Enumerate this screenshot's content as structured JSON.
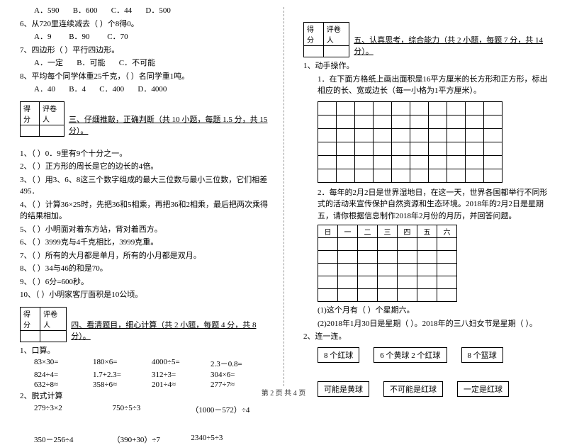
{
  "left": {
    "q5_opts": {
      "a": "A．590",
      "b": "B．600",
      "c": "C．44",
      "d": "D．500"
    },
    "q6": "6、从720里连续减去（    ）个8得0。",
    "q6_opts": {
      "a": "A．9",
      "b": "B．90",
      "c": "C．70"
    },
    "q7": "7、四边形（    ）平行四边形。",
    "q7_opts": {
      "a": "A．一定",
      "b": "B．可能",
      "c": "C．不可能"
    },
    "q8": "8、平均每个同学体重25千克，（    ）名同学重1吨。",
    "q8_opts": {
      "a": "A．40",
      "b": "B．4",
      "c": "C．400",
      "d": "D．4000"
    },
    "score_label_1": "得分",
    "score_label_2": "评卷人",
    "sec3_title": "三、仔细推敲，正确判断（共 10 小题，每题 1.5 分，共 15 分）。",
    "j1": "1、（    ）0．9里有9个十分之一。",
    "j2": "2、（    ）正方形的周长是它的边长的4倍。",
    "j3": "3、（    ）用3、6、8这三个数字组成的最大三位数与最小三位数，它们相差495．",
    "j4": "4、（    ）计算36×25时，先把36和5相乘，再把36和2相乘，最后把两次乘得的结果相加。",
    "j5": "5、（    ）小明面对着东方站，背对着西方。",
    "j6": "6、（    ）3999克与4千克相比，3999克重。",
    "j7": "7、（    ）所有的大月都是单月，所有的小月都是双月。",
    "j8": "8、（    ）34与46的和是70。",
    "j9": "9、（    ）6分=600秒。",
    "j10": "10、（    ）小明家客厅面积是10公顷。",
    "sec4_title": "四、看清题目，细心计算（共 2 小题，每题 4 分，共 8 分）。",
    "c1_label": "1、口算。",
    "c1r1": {
      "a": "83×30=",
      "b": "180×6=",
      "c": "4000÷5=",
      "d": "2.3－0.8="
    },
    "c1r2": {
      "a": "824÷4=",
      "b": "1.7+2.3=",
      "c": "312÷3=",
      "d": "304×6="
    },
    "c1r3": {
      "a": "632÷8≈",
      "b": "358÷6≈",
      "c": "201÷4≈",
      "d": "277÷7≈"
    },
    "c2_label": "2、脱式计算",
    "c2r1": {
      "a": "279÷3×2",
      "b": "750÷5÷3",
      "c": "（1000－572）÷4"
    },
    "c2r2": {
      "a": "350－256÷4",
      "b": "（390+30）÷7",
      "c": "2340÷5÷3"
    }
  },
  "right": {
    "score_label_1": "得分",
    "score_label_2": "评卷人",
    "sec5_title": "五、认真思考，综合能力（共 2 小题，每题 7 分，共 14 分）。",
    "q1": "1、动手操作。",
    "q1_sub": "1．在下面方格纸上画出面积是16平方厘米的长方形和正方形，标出相应的长、宽或边长（每一小格为1平方厘米）。",
    "grid": {
      "cols": 10,
      "rows": 6
    },
    "q1_2": "2．每年的2月2日是世界湿地日，在这一天，世界各国都举行不同形式的活动来宣传保护自然资源和生态环境。2018年的2月2日是星期五，请你根据信息制作2018年2月份的月历，并回答问题。",
    "calendar_header": [
      "日",
      "一",
      "二",
      "三",
      "四",
      "五",
      "六"
    ],
    "q1_2a": "(1)这个月有（    ）个星期六。",
    "q1_2b": "(2)2018年1月30日是星期（    ）。2018年的三八妇女节是星期（    ）。",
    "q2": "2、连一连。",
    "tags_row1": [
      "8 个红球",
      "6 个黄球 2 个红球",
      "8 个篮球"
    ],
    "tags_row2": [
      "可能是黄球",
      "不可能是红球",
      "一定是红球"
    ]
  },
  "footer": "第 2 页 共 4 页"
}
